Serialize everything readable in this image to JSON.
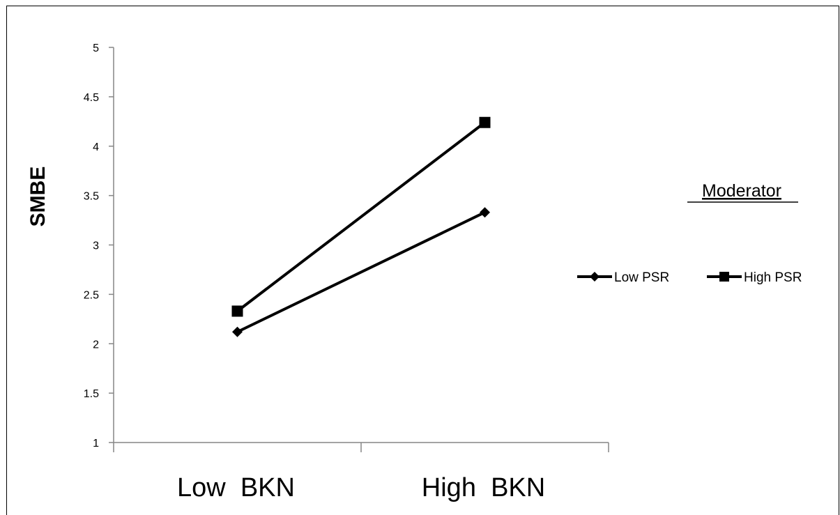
{
  "chart_data": {
    "type": "line",
    "categories": [
      "Low  BKN",
      "High  BKN"
    ],
    "ylabel": "SMBE",
    "xlabel": "",
    "ylim": [
      1,
      5
    ],
    "yticks": [
      "1",
      "1.5",
      "2",
      "2.5",
      "3",
      "3.5",
      "4",
      "4.5",
      "5"
    ],
    "legend_title": "Moderator",
    "legend_position": "right",
    "grid": false,
    "series": [
      {
        "name": "Low PSR",
        "marker": "diamond",
        "color": "#000000",
        "values": [
          2.12,
          3.33
        ]
      },
      {
        "name": "High PSR",
        "marker": "square",
        "color": "#000000",
        "values": [
          2.33,
          4.24
        ]
      }
    ]
  }
}
